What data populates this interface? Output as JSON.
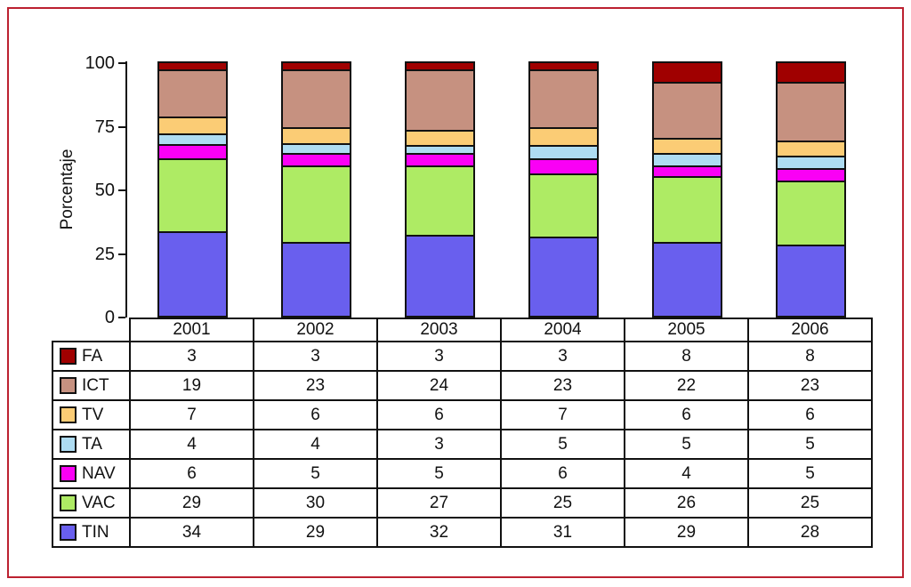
{
  "frame": {
    "border_color": "#bc2130",
    "background": "#ffffff"
  },
  "chart_data": {
    "type": "bar",
    "stacked": true,
    "percent_stacked": true,
    "title": "",
    "xlabel": "",
    "ylabel": "Porcentaje",
    "ylim": [
      0,
      100
    ],
    "yticks": [
      0,
      25,
      50,
      75,
      100
    ],
    "grid": false,
    "legend_position": "table-left-column",
    "categories": [
      "2001",
      "2002",
      "2003",
      "2004",
      "2005",
      "2006"
    ],
    "series": [
      {
        "name": "FA",
        "color": "#a00000",
        "values": [
          3,
          3,
          3,
          3,
          8,
          8
        ]
      },
      {
        "name": "ICT",
        "color": "#c69180",
        "values": [
          19,
          23,
          24,
          23,
          22,
          23
        ]
      },
      {
        "name": "TV",
        "color": "#fbcc75",
        "values": [
          7,
          6,
          6,
          7,
          6,
          6
        ]
      },
      {
        "name": "TA",
        "color": "#aedcf2",
        "values": [
          4,
          4,
          3,
          5,
          5,
          5
        ]
      },
      {
        "name": "NAV",
        "color": "#fa00f5",
        "values": [
          6,
          5,
          5,
          6,
          4,
          5
        ]
      },
      {
        "name": "VAC",
        "color": "#aeeb64",
        "values": [
          29,
          30,
          27,
          25,
          26,
          25
        ]
      },
      {
        "name": "TIN",
        "color": "#695fee",
        "values": [
          34,
          29,
          32,
          31,
          29,
          28
        ]
      }
    ],
    "stack_order_bottom_to_top": [
      "TIN",
      "VAC",
      "NAV",
      "TA",
      "TV",
      "ICT",
      "FA"
    ]
  }
}
